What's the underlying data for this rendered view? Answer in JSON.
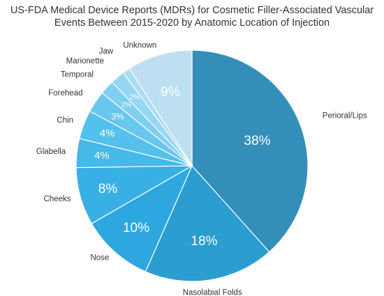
{
  "chart_data": {
    "type": "pie",
    "title": "US-FDA Medical Device Reports (MDRs) for Cosmetic Filler-Associated Vascular Events Between 2015-2020 by Anatomic Location of Injection",
    "title_lines": [
      "US-FDA Medical Device Reports (MDRs) for Cosmetic Filler-Associated Vascular",
      "Events Between 2015-2020 by Anatomic Location of Injection"
    ],
    "slices": [
      {
        "label": "Perioral/Lips",
        "value": 38,
        "value_label": "38%",
        "color": "#338fb9"
      },
      {
        "label": "Nasolabial Folds",
        "value": 18,
        "value_label": "18%",
        "color": "#2c9dd0"
      },
      {
        "label": "Nose",
        "value": 10,
        "value_label": "10%",
        "color": "#2ea7e0"
      },
      {
        "label": "Cheeks",
        "value": 8,
        "value_label": "8%",
        "color": "#38b0e6"
      },
      {
        "label": "Glabella",
        "value": 4,
        "value_label": "4%",
        "color": "#45b9ea"
      },
      {
        "label": "Chin",
        "value": 4,
        "value_label": "4%",
        "color": "#54c0ec"
      },
      {
        "label": "Forehead",
        "value": 3,
        "value_label": "3%",
        "color": "#69c6ee"
      },
      {
        "label": "Temporal",
        "value": 2,
        "value_label": "2%",
        "color": "#80cff1"
      },
      {
        "label": "Marionette",
        "value": 2,
        "value_label": "2%",
        "color": "#96d7f3"
      },
      {
        "label": "Jaw",
        "value": 1,
        "value_label": "",
        "color": "#aaddf4"
      },
      {
        "label": "Unknown",
        "value": 9,
        "value_label": "9%",
        "color": "#bddff2"
      }
    ]
  }
}
